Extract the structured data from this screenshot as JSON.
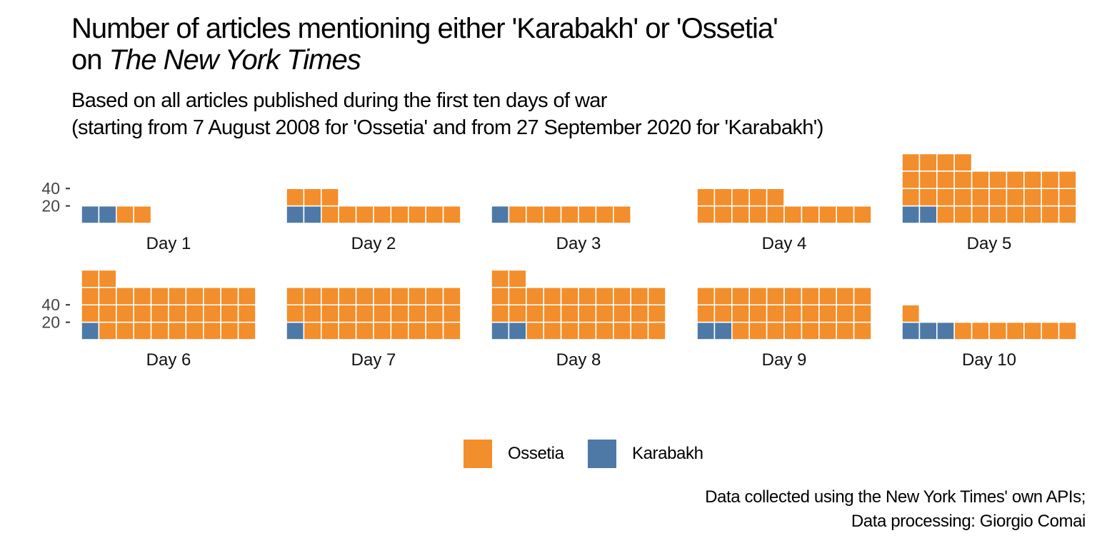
{
  "title": {
    "line1": "Number of articles mentioning either 'Karabakh' or 'Ossetia'",
    "line2_prefix": "on ",
    "line2_italic": "The New York Times"
  },
  "subtitle": {
    "line1": "Based on all articles published during the first ten days of war",
    "line2": "(starting from 7 August 2008 for 'Ossetia' and from 27 September 2020 for 'Karabakh')"
  },
  "caption": {
    "line1": "Data collected using the New York Times' own APIs;",
    "line2": "Data processing: Giorgio Comai"
  },
  "legend": {
    "items": [
      {
        "label": "Ossetia",
        "color": "#F28E2B"
      },
      {
        "label": "Karabakh",
        "color": "#4E79A7"
      }
    ]
  },
  "chart_data": {
    "type": "waffle",
    "title": "Number of articles mentioning either 'Karabakh' or 'Ossetia' on The New York Times",
    "y_ticks": [
      20,
      40
    ],
    "units_per_cell": 2,
    "series": [
      {
        "name": "Karabakh",
        "color": "#4E79A7"
      },
      {
        "name": "Ossetia",
        "color": "#F28E2B"
      }
    ],
    "facets": [
      {
        "label": "Day 1",
        "karabakh": 4,
        "ossetia": 4
      },
      {
        "label": "Day 2",
        "karabakh": 4,
        "ossetia": 22
      },
      {
        "label": "Day 3",
        "karabakh": 2,
        "ossetia": 14
      },
      {
        "label": "Day 4",
        "karabakh": 0,
        "ossetia": 30
      },
      {
        "label": "Day 5",
        "karabakh": 4,
        "ossetia": 64
      },
      {
        "label": "Day 6",
        "karabakh": 2,
        "ossetia": 62
      },
      {
        "label": "Day 7",
        "karabakh": 2,
        "ossetia": 58
      },
      {
        "label": "Day 8",
        "karabakh": 4,
        "ossetia": 60
      },
      {
        "label": "Day 9",
        "karabakh": 4,
        "ossetia": 56
      },
      {
        "label": "Day 10",
        "karabakh": 6,
        "ossetia": 16
      }
    ]
  }
}
